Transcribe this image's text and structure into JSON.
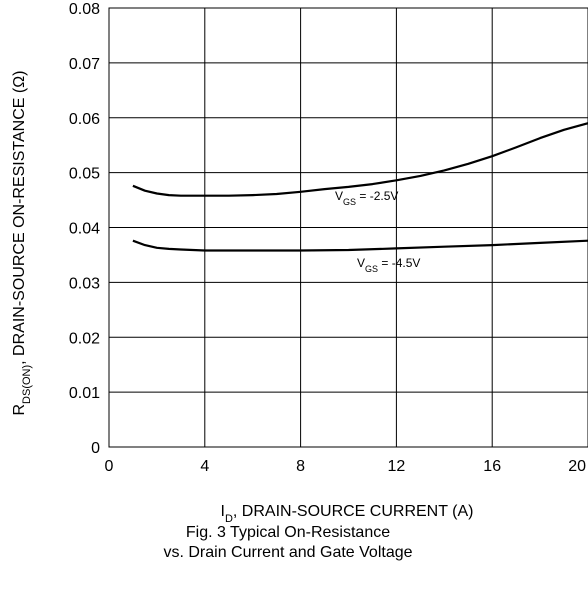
{
  "chart_data": {
    "type": "line",
    "title": "Fig. 3  Typical On-Resistance",
    "subtitle": "vs. Drain Current and Gate Voltage",
    "xlabel": {
      "main": "I",
      "sub": "D",
      "rest": ", DRAIN-SOURCE CURRENT (A)"
    },
    "ylabel": {
      "main": "R",
      "sub": "DS(ON)",
      "rest": ", DRAIN-SOURCE ON-RESISTANCE (Ω)"
    },
    "xlim": [
      0,
      20
    ],
    "ylim": [
      0,
      0.08
    ],
    "x_ticks": [
      "0",
      "4",
      "8",
      "12",
      "16",
      "20"
    ],
    "y_ticks": [
      "0",
      "0.01",
      "0.02",
      "0.03",
      "0.04",
      "0.05",
      "0.06",
      "0.07",
      "0.08"
    ],
    "grid": true,
    "series": [
      {
        "label": {
          "main": "V",
          "sub": "GS",
          "rest": " = -2.5V"
        },
        "points": [
          [
            1,
            0.0476
          ],
          [
            1.5,
            0.0467
          ],
          [
            2,
            0.0462
          ],
          [
            2.5,
            0.0459
          ],
          [
            3,
            0.0458
          ],
          [
            4,
            0.0458
          ],
          [
            5,
            0.0458
          ],
          [
            6,
            0.0459
          ],
          [
            7,
            0.0461
          ],
          [
            8,
            0.0465
          ],
          [
            9,
            0.047
          ],
          [
            10,
            0.0474
          ],
          [
            11,
            0.0479
          ],
          [
            12,
            0.0486
          ],
          [
            13,
            0.0494
          ],
          [
            14,
            0.0504
          ],
          [
            15,
            0.0516
          ],
          [
            16,
            0.053
          ],
          [
            17,
            0.0546
          ],
          [
            18,
            0.0563
          ],
          [
            19,
            0.0578
          ],
          [
            20,
            0.059
          ]
        ]
      },
      {
        "label": {
          "main": "V",
          "sub": "GS",
          "rest": " = -4.5V"
        },
        "points": [
          [
            1,
            0.0376
          ],
          [
            1.5,
            0.0368
          ],
          [
            2,
            0.0363
          ],
          [
            2.5,
            0.0361
          ],
          [
            3,
            0.036
          ],
          [
            4,
            0.0358
          ],
          [
            6,
            0.0358
          ],
          [
            8,
            0.0358
          ],
          [
            10,
            0.0359
          ],
          [
            12,
            0.0362
          ],
          [
            14,
            0.0365
          ],
          [
            16,
            0.0368
          ],
          [
            18,
            0.0372
          ],
          [
            20,
            0.0376
          ]
        ]
      }
    ]
  }
}
